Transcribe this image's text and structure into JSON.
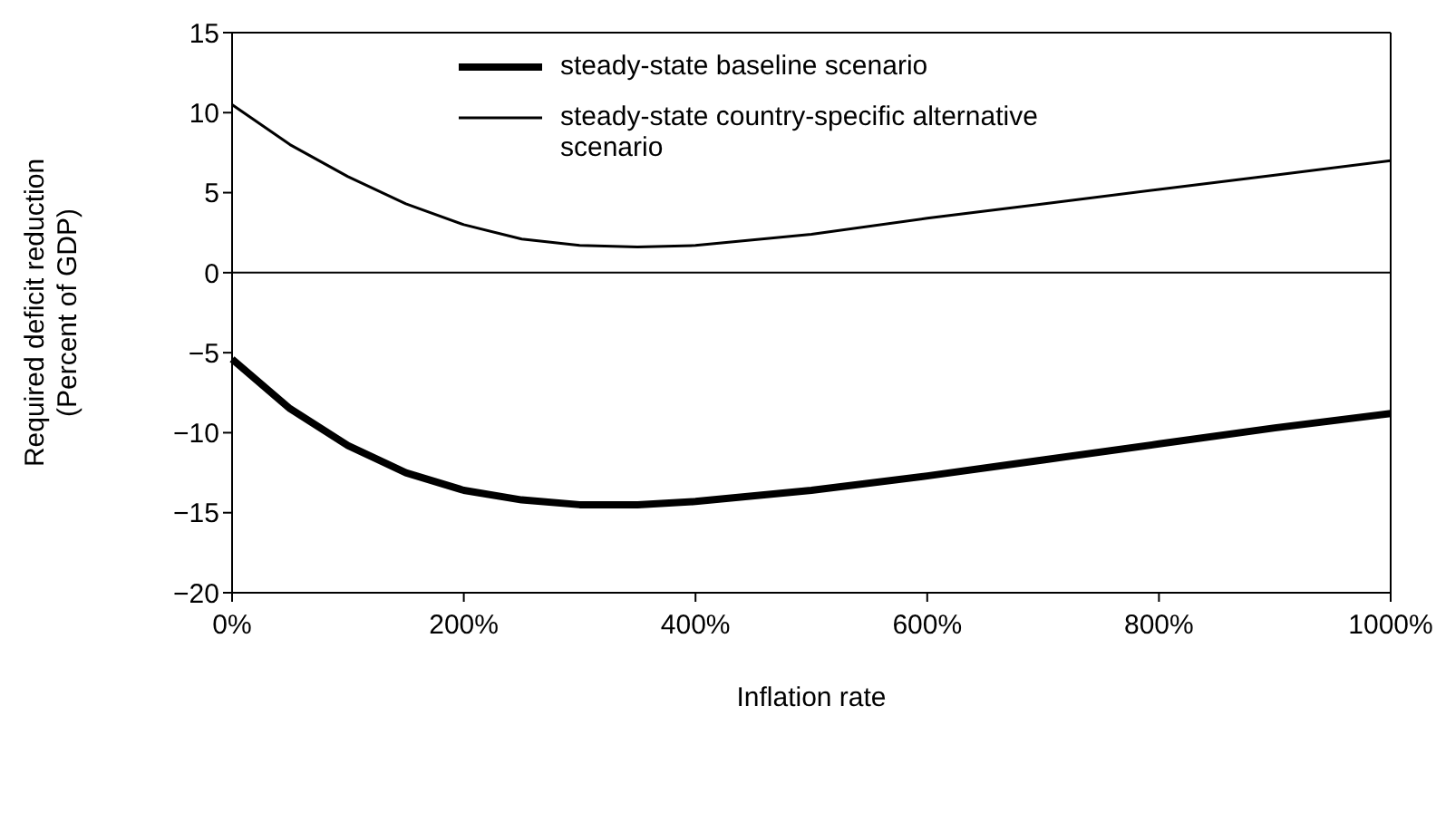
{
  "chart_data": {
    "type": "line",
    "xlabel": "Inflation rate",
    "ylabel": "Required deficit reduction\n(Percent of GDP)",
    "x": [
      0,
      50,
      100,
      150,
      200,
      250,
      300,
      350,
      400,
      500,
      600,
      700,
      800,
      900,
      1000
    ],
    "series": [
      {
        "name": "steady-state baseline scenario",
        "color": "#000000",
        "values": [
          -5.4,
          -8.5,
          -10.8,
          -12.5,
          -13.6,
          -14.2,
          -14.5,
          -14.5,
          -14.3,
          -13.6,
          -12.7,
          -11.7,
          -10.7,
          -9.7,
          -8.8
        ]
      },
      {
        "name": "steady-state country-specific alternative scenario",
        "color": "#000000",
        "values": [
          10.5,
          8,
          6,
          4.3,
          3,
          2.1,
          1.7,
          1.6,
          1.7,
          2.4,
          3.4,
          4.3,
          5.2,
          6.1,
          7
        ]
      }
    ],
    "xlim": [
      0,
      1000
    ],
    "xticks": [
      {
        "value": 0,
        "label": "0%"
      },
      {
        "value": 200,
        "label": "200%"
      },
      {
        "value": 400,
        "label": "400%"
      },
      {
        "value": 600,
        "label": "600%"
      },
      {
        "value": 800,
        "label": "800%"
      },
      {
        "value": 1000,
        "label": "1000%"
      }
    ],
    "ylim": [
      -20,
      15
    ],
    "yticks": [
      {
        "value": -20,
        "label": "−20"
      },
      {
        "value": -15,
        "label": "−15"
      },
      {
        "value": -10,
        "label": "−10"
      },
      {
        "value": -5,
        "label": "−5"
      },
      0,
      5,
      10,
      15
    ],
    "ref_lines": [
      {
        "axis": "y",
        "value": 0,
        "label": null,
        "color": "#000000"
      }
    ],
    "legend": "top",
    "grid": false,
    "marker": "none",
    "line_style": "solid"
  }
}
